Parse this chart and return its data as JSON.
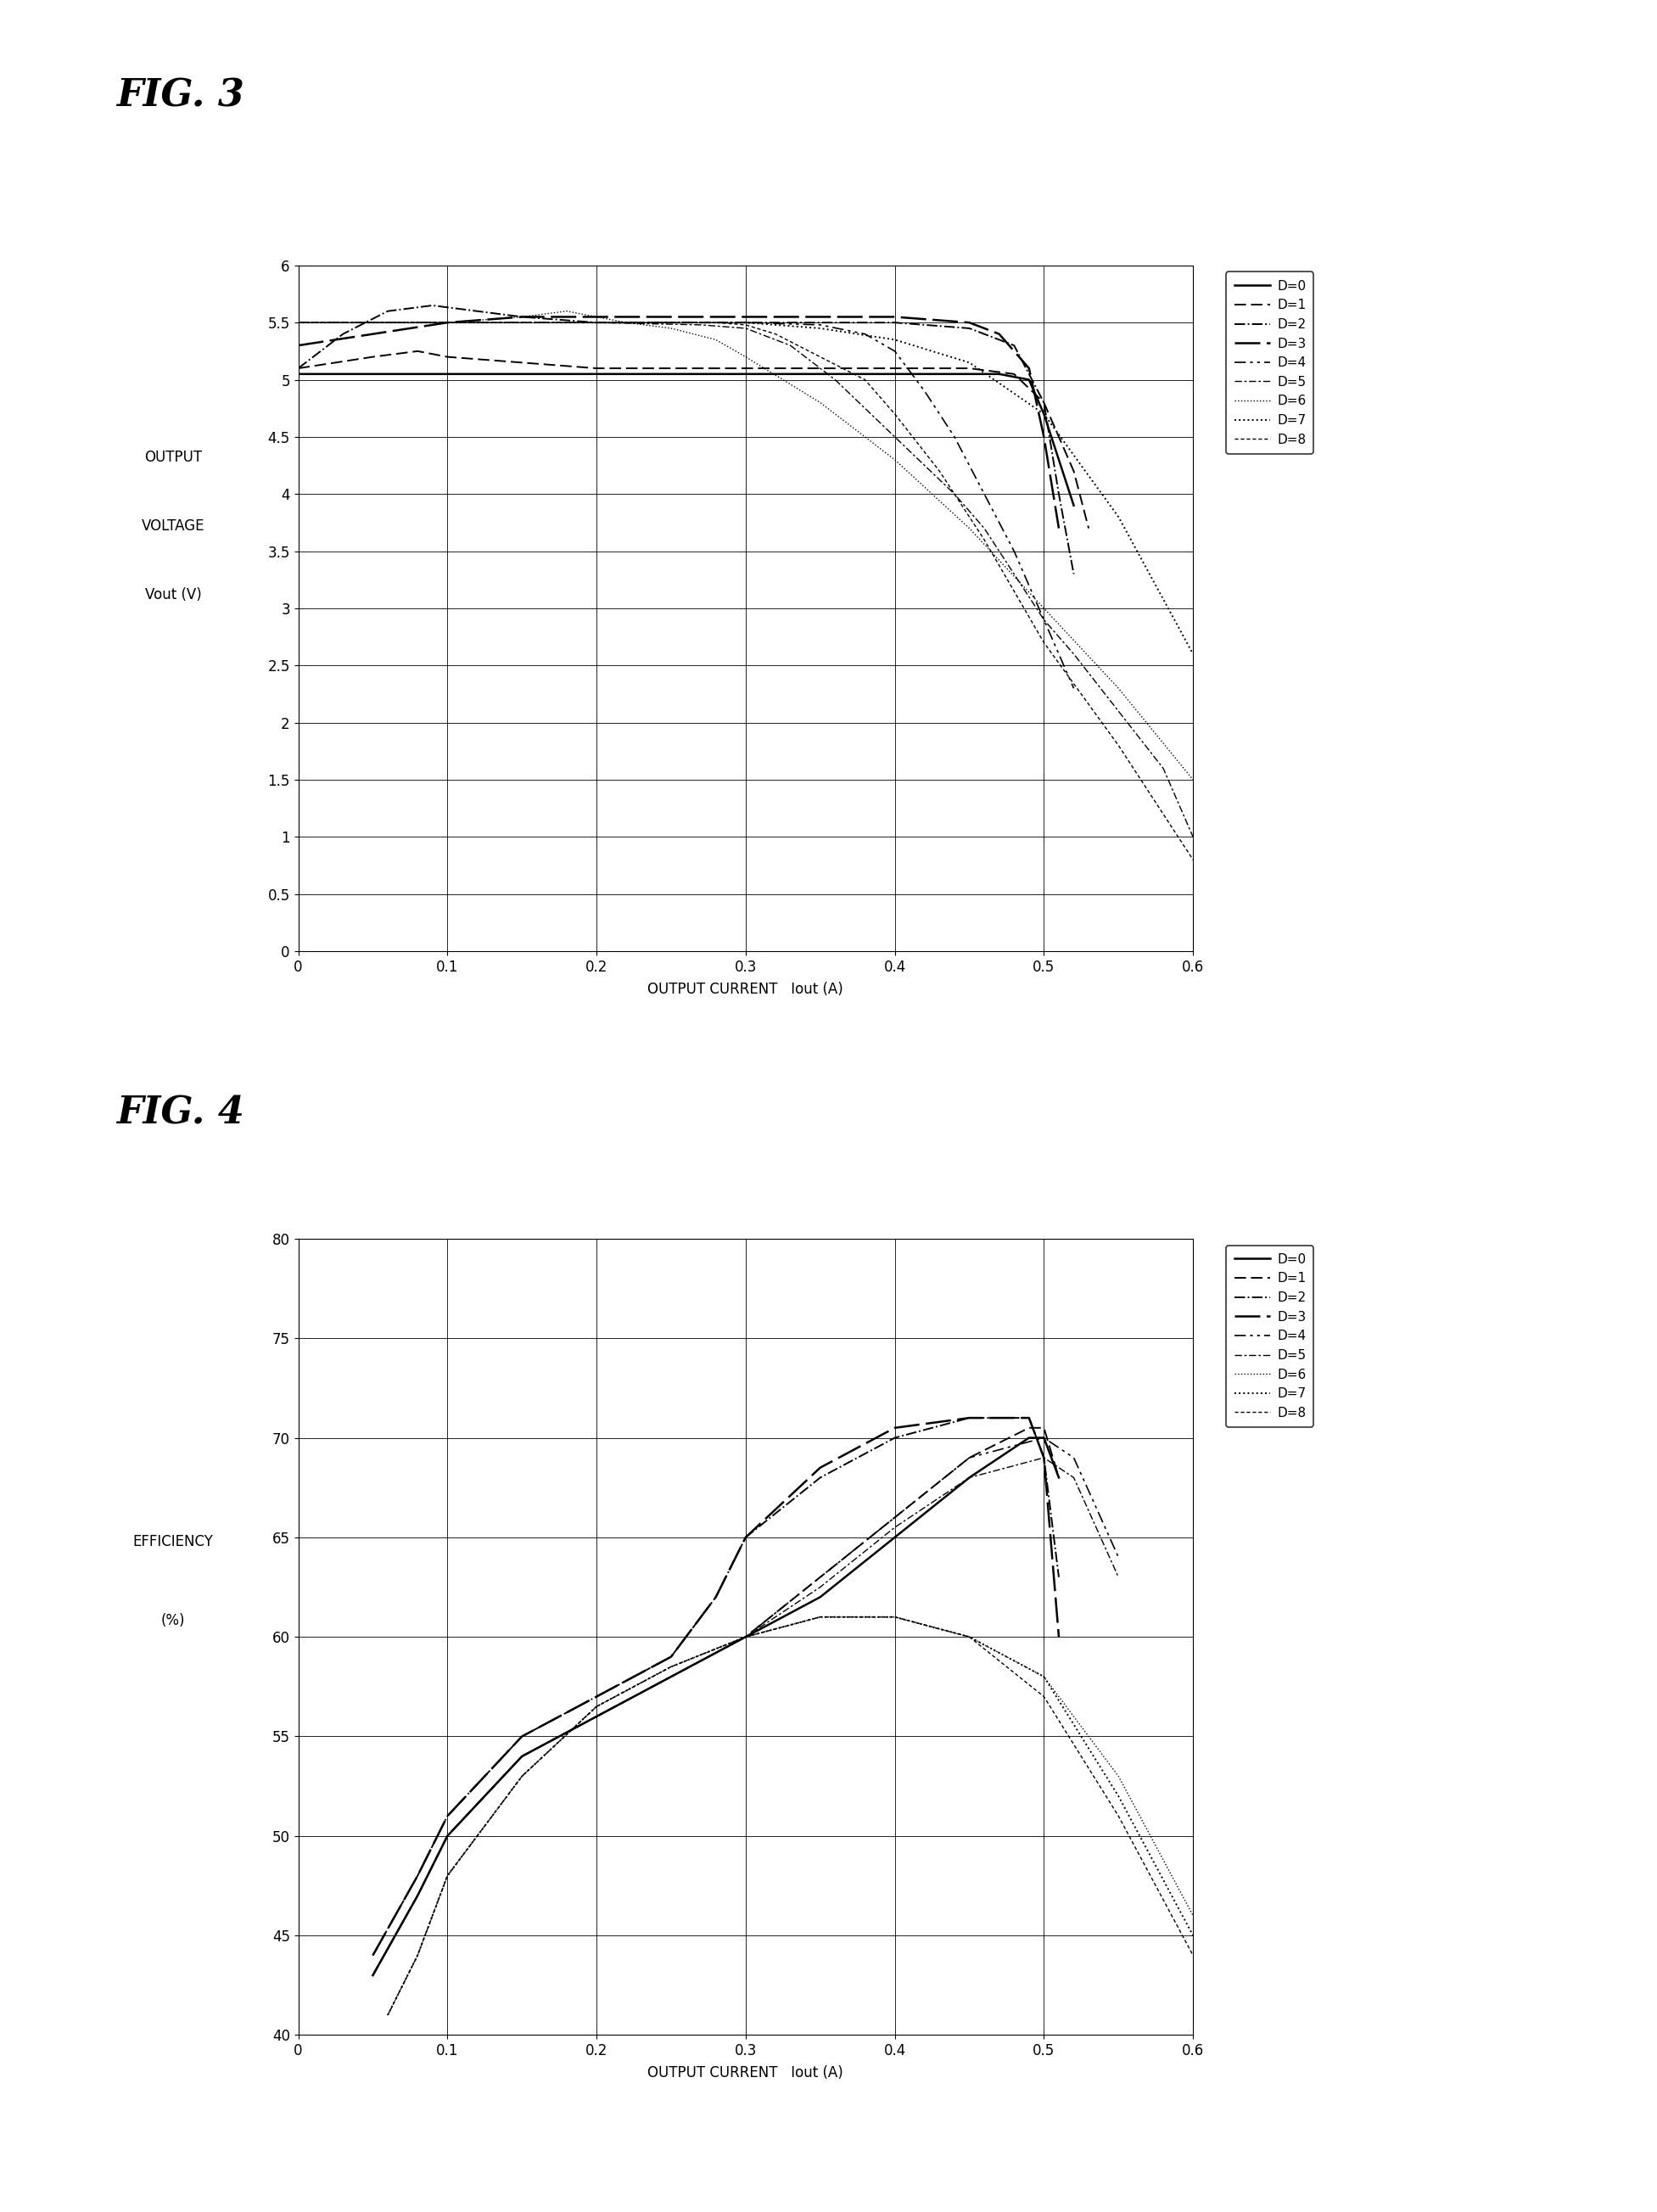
{
  "fig3_title": "FIG. 3",
  "fig4_title": "FIG. 4",
  "fig3_ylabel_line1": "OUTPUT",
  "fig3_ylabel_line2": "VOLTAGE",
  "fig3_ylabel_line3": "Vout (V)",
  "fig3_xlabel": "OUTPUT CURRENT   Iout (A)",
  "fig4_ylabel_line1": "EFFICIENCY",
  "fig4_ylabel_line2": "(%)",
  "fig4_xlabel": "OUTPUT CURRENT   Iout (A)",
  "xlim": [
    0,
    0.6
  ],
  "fig3_ylim": [
    0,
    6
  ],
  "fig4_ylim": [
    40,
    80
  ],
  "fig3_yticks": [
    0,
    0.5,
    1,
    1.5,
    2,
    2.5,
    3,
    3.5,
    4,
    4.5,
    5,
    5.5,
    6
  ],
  "fig4_yticks": [
    40,
    45,
    50,
    55,
    60,
    65,
    70,
    75,
    80
  ],
  "xticks": [
    0,
    0.1,
    0.2,
    0.3,
    0.4,
    0.5,
    0.6
  ],
  "legend_labels": [
    "D=0",
    "D=1",
    "D=2",
    "D=3",
    "D=4",
    "D=5",
    "D=6",
    "D=7",
    "D=8"
  ],
  "fig3_curves": {
    "D0": {
      "x": [
        0.0,
        0.1,
        0.2,
        0.3,
        0.4,
        0.45,
        0.47,
        0.49,
        0.5,
        0.51,
        0.52
      ],
      "y": [
        5.05,
        5.05,
        5.05,
        5.05,
        5.05,
        5.05,
        5.05,
        5.0,
        4.7,
        4.3,
        3.9
      ]
    },
    "D1": {
      "x": [
        0.0,
        0.05,
        0.08,
        0.1,
        0.15,
        0.2,
        0.25,
        0.3,
        0.35,
        0.4,
        0.45,
        0.48,
        0.5,
        0.52,
        0.53
      ],
      "y": [
        5.1,
        5.2,
        5.25,
        5.2,
        5.15,
        5.1,
        5.1,
        5.1,
        5.1,
        5.1,
        5.1,
        5.05,
        4.8,
        4.2,
        3.7
      ]
    },
    "D2": {
      "x": [
        0.0,
        0.03,
        0.06,
        0.09,
        0.12,
        0.15,
        0.2,
        0.25,
        0.3,
        0.35,
        0.4,
        0.45,
        0.48,
        0.5,
        0.51,
        0.52
      ],
      "y": [
        5.1,
        5.4,
        5.6,
        5.65,
        5.6,
        5.55,
        5.5,
        5.5,
        5.5,
        5.5,
        5.5,
        5.45,
        5.3,
        4.8,
        4.0,
        3.3
      ]
    },
    "D3": {
      "x": [
        0.0,
        0.05,
        0.1,
        0.15,
        0.2,
        0.25,
        0.28,
        0.3,
        0.32,
        0.35,
        0.4,
        0.45,
        0.47,
        0.49,
        0.5,
        0.51
      ],
      "y": [
        5.3,
        5.4,
        5.5,
        5.55,
        5.55,
        5.55,
        5.55,
        5.55,
        5.55,
        5.55,
        5.55,
        5.5,
        5.4,
        5.1,
        4.5,
        3.7
      ]
    },
    "D4": {
      "x": [
        0.0,
        0.1,
        0.2,
        0.3,
        0.35,
        0.38,
        0.4,
        0.42,
        0.44,
        0.46,
        0.48,
        0.5,
        0.52
      ],
      "y": [
        5.5,
        5.5,
        5.5,
        5.5,
        5.48,
        5.4,
        5.25,
        4.9,
        4.5,
        4.0,
        3.5,
        2.9,
        2.3
      ]
    },
    "D5": {
      "x": [
        0.0,
        0.1,
        0.2,
        0.27,
        0.3,
        0.33,
        0.36,
        0.4,
        0.44,
        0.46,
        0.48,
        0.5,
        0.52,
        0.55,
        0.58,
        0.6
      ],
      "y": [
        5.5,
        5.5,
        5.5,
        5.48,
        5.45,
        5.3,
        5.0,
        4.5,
        4.0,
        3.7,
        3.3,
        2.9,
        2.6,
        2.1,
        1.6,
        1.0
      ]
    },
    "D6": {
      "x": [
        0.0,
        0.1,
        0.15,
        0.18,
        0.2,
        0.22,
        0.25,
        0.28,
        0.3,
        0.35,
        0.4,
        0.45,
        0.5,
        0.55,
        0.6
      ],
      "y": [
        5.5,
        5.5,
        5.55,
        5.6,
        5.55,
        5.5,
        5.45,
        5.35,
        5.2,
        4.8,
        4.3,
        3.7,
        3.0,
        2.3,
        1.5
      ]
    },
    "D7": {
      "x": [
        0.0,
        0.1,
        0.2,
        0.3,
        0.35,
        0.4,
        0.45,
        0.5,
        0.55,
        0.6
      ],
      "y": [
        5.5,
        5.5,
        5.5,
        5.5,
        5.45,
        5.35,
        5.15,
        4.7,
        3.8,
        2.6
      ]
    },
    "D8": {
      "x": [
        0.0,
        0.1,
        0.2,
        0.28,
        0.3,
        0.32,
        0.35,
        0.38,
        0.4,
        0.43,
        0.46,
        0.5,
        0.55,
        0.6
      ],
      "y": [
        5.5,
        5.5,
        5.5,
        5.5,
        5.48,
        5.4,
        5.2,
        5.0,
        4.7,
        4.2,
        3.6,
        2.7,
        1.8,
        0.8
      ]
    }
  },
  "fig4_curves": {
    "D0": {
      "x": [
        0.05,
        0.08,
        0.1,
        0.15,
        0.2,
        0.25,
        0.3,
        0.35,
        0.4,
        0.45,
        0.49,
        0.5,
        0.51
      ],
      "y": [
        43,
        47,
        50,
        54,
        56,
        58,
        60,
        62,
        65,
        68,
        70,
        70,
        68
      ]
    },
    "D1": {
      "x": [
        0.05,
        0.08,
        0.1,
        0.15,
        0.2,
        0.25,
        0.3,
        0.35,
        0.4,
        0.45,
        0.49,
        0.5,
        0.51
      ],
      "y": [
        43,
        47,
        50,
        54,
        56,
        58,
        60,
        63,
        66,
        69,
        70.5,
        70.5,
        68
      ]
    },
    "D2": {
      "x": [
        0.05,
        0.08,
        0.1,
        0.15,
        0.2,
        0.25,
        0.28,
        0.3,
        0.35,
        0.4,
        0.45,
        0.49,
        0.5,
        0.51
      ],
      "y": [
        44,
        48,
        51,
        55,
        57,
        59,
        62,
        65,
        68,
        70,
        71,
        71,
        69,
        63
      ]
    },
    "D3": {
      "x": [
        0.05,
        0.08,
        0.1,
        0.15,
        0.2,
        0.25,
        0.28,
        0.3,
        0.35,
        0.4,
        0.45,
        0.49,
        0.5,
        0.51
      ],
      "y": [
        44,
        48,
        51,
        55,
        57,
        59,
        62,
        65,
        68.5,
        70.5,
        71,
        71,
        69,
        60
      ]
    },
    "D4": {
      "x": [
        0.05,
        0.08,
        0.1,
        0.15,
        0.2,
        0.25,
        0.3,
        0.35,
        0.4,
        0.45,
        0.5,
        0.52,
        0.55
      ],
      "y": [
        43,
        47,
        50,
        54,
        56,
        58,
        60,
        63,
        66,
        69,
        70,
        69,
        64
      ]
    },
    "D5": {
      "x": [
        0.05,
        0.08,
        0.1,
        0.15,
        0.2,
        0.25,
        0.3,
        0.35,
        0.4,
        0.45,
        0.5,
        0.52,
        0.55
      ],
      "y": [
        43,
        47,
        50,
        54,
        56,
        58,
        60,
        62.5,
        65.5,
        68,
        69,
        68,
        63
      ]
    },
    "D6": {
      "x": [
        0.06,
        0.08,
        0.1,
        0.15,
        0.2,
        0.25,
        0.3,
        0.35,
        0.4,
        0.45,
        0.5,
        0.55,
        0.6
      ],
      "y": [
        41,
        44,
        48,
        53,
        56.5,
        58.5,
        60,
        61,
        61,
        60,
        58,
        53,
        46
      ]
    },
    "D7": {
      "x": [
        0.06,
        0.08,
        0.1,
        0.15,
        0.2,
        0.25,
        0.3,
        0.35,
        0.4,
        0.45,
        0.5,
        0.55,
        0.6
      ],
      "y": [
        41,
        44,
        48,
        53,
        56.5,
        58.5,
        60,
        61,
        61,
        60,
        58,
        52,
        45
      ]
    },
    "D8": {
      "x": [
        0.06,
        0.08,
        0.1,
        0.15,
        0.2,
        0.25,
        0.3,
        0.35,
        0.4,
        0.45,
        0.5,
        0.55,
        0.6
      ],
      "y": [
        41,
        44,
        48,
        53,
        56.5,
        58.5,
        60,
        61,
        61,
        60,
        57,
        51,
        44
      ]
    }
  }
}
